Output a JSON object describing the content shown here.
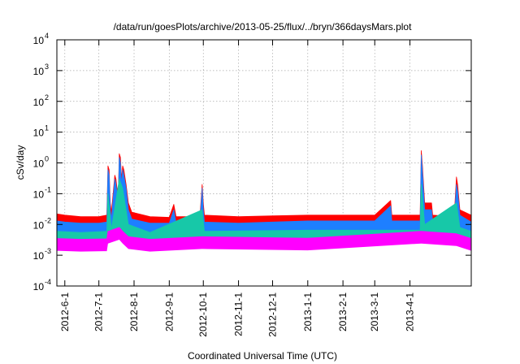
{
  "chart_data": {
    "type": "area",
    "title": "/data/run/goesPlots/archive/2013-05-25/flux/../bryn/366daysMars.plot",
    "xlabel": "Coordinated Universal Time (UTC)",
    "ylabel": "cSv/day",
    "y_scale": "log",
    "ylim": [
      0.0001,
      10000
    ],
    "xlim": [
      "2012-05-25",
      "2013-05-25"
    ],
    "y_ticks": [
      {
        "value": 0.0001,
        "base": "10",
        "exp": "-4"
      },
      {
        "value": 0.001,
        "base": "10",
        "exp": "-3"
      },
      {
        "value": 0.01,
        "base": "10",
        "exp": "-2"
      },
      {
        "value": 0.1,
        "base": "10",
        "exp": "-1"
      },
      {
        "value": 1,
        "base": "10",
        "exp": "0"
      },
      {
        "value": 10,
        "base": "10",
        "exp": "1"
      },
      {
        "value": 100,
        "base": "10",
        "exp": "2"
      },
      {
        "value": 1000,
        "base": "10",
        "exp": "3"
      },
      {
        "value": 10000,
        "base": "10",
        "exp": "4"
      }
    ],
    "x_ticks": [
      {
        "date": "2012-06-01",
        "label": "2012-6-1"
      },
      {
        "date": "2012-07-01",
        "label": "2012-7-1"
      },
      {
        "date": "2012-08-01",
        "label": "2012-8-1"
      },
      {
        "date": "2012-09-01",
        "label": "2012-9-1"
      },
      {
        "date": "2012-10-01",
        "label": "2012-10-1"
      },
      {
        "date": "2012-11-01",
        "label": "2012-11-1"
      },
      {
        "date": "2012-12-01",
        "label": "2012-12-1"
      },
      {
        "date": "2013-01-01",
        "label": "2013-1-1"
      },
      {
        "date": "2013-02-01",
        "label": "2013-2-1"
      },
      {
        "date": "2013-03-01",
        "label": "2013-3-1"
      },
      {
        "date": "2013-04-01",
        "label": "2013-4-1"
      }
    ],
    "grid": true,
    "series": [
      {
        "color": "#ff0000",
        "values": [
          [
            "2012-05-25",
            0.022
          ],
          [
            "2012-06-01",
            0.02
          ],
          [
            "2012-06-15",
            0.018
          ],
          [
            "2012-07-01",
            0.018
          ],
          [
            "2012-07-08",
            0.02
          ],
          [
            "2012-07-09",
            0.8
          ],
          [
            "2012-07-10",
            0.6
          ],
          [
            "2012-07-11",
            0.05
          ],
          [
            "2012-07-12",
            0.025
          ],
          [
            "2012-07-15",
            0.4
          ],
          [
            "2012-07-16",
            0.3
          ],
          [
            "2012-07-18",
            0.07
          ],
          [
            "2012-07-19",
            2.0
          ],
          [
            "2012-07-20",
            1.5
          ],
          [
            "2012-07-21",
            0.3
          ],
          [
            "2012-07-22",
            0.8
          ],
          [
            "2012-07-23",
            0.6
          ],
          [
            "2012-07-25",
            0.2
          ],
          [
            "2012-07-27",
            0.05
          ],
          [
            "2012-07-30",
            0.025
          ],
          [
            "2012-08-15",
            0.018
          ],
          [
            "2012-09-01",
            0.017
          ],
          [
            "2012-09-05",
            0.045
          ],
          [
            "2012-09-07",
            0.018
          ],
          [
            "2012-09-28",
            0.018
          ],
          [
            "2012-09-30",
            0.2
          ],
          [
            "2012-10-01",
            0.05
          ],
          [
            "2012-10-02",
            0.02
          ],
          [
            "2012-11-01",
            0.018
          ],
          [
            "2012-12-01",
            0.019
          ],
          [
            "2013-01-01",
            0.02
          ],
          [
            "2013-02-01",
            0.02
          ],
          [
            "2013-03-01",
            0.02
          ],
          [
            "2013-03-15",
            0.06
          ],
          [
            "2013-03-16",
            0.02
          ],
          [
            "2013-04-10",
            0.02
          ],
          [
            "2013-04-11",
            2.5
          ],
          [
            "2013-04-12",
            0.8
          ],
          [
            "2013-04-14",
            0.05
          ],
          [
            "2013-04-20",
            0.05
          ],
          [
            "2013-04-21",
            0.02
          ],
          [
            "2013-05-10",
            0.018
          ],
          [
            "2013-05-12",
            0.35
          ],
          [
            "2013-05-13",
            0.2
          ],
          [
            "2013-05-15",
            0.03
          ],
          [
            "2013-05-25",
            0.02
          ]
        ]
      },
      {
        "color": "#1e7fff",
        "values": [
          [
            "2012-05-25",
            0.013
          ],
          [
            "2012-06-01",
            0.012
          ],
          [
            "2012-06-15",
            0.011
          ],
          [
            "2012-07-01",
            0.011
          ],
          [
            "2012-07-08",
            0.012
          ],
          [
            "2012-07-09",
            0.6
          ],
          [
            "2012-07-10",
            0.4
          ],
          [
            "2012-07-11",
            0.03
          ],
          [
            "2012-07-12",
            0.015
          ],
          [
            "2012-07-15",
            0.3
          ],
          [
            "2012-07-16",
            0.2
          ],
          [
            "2012-07-18",
            0.05
          ],
          [
            "2012-07-19",
            1.5
          ],
          [
            "2012-07-20",
            1.0
          ],
          [
            "2012-07-21",
            0.2
          ],
          [
            "2012-07-22",
            0.6
          ],
          [
            "2012-07-23",
            0.4
          ],
          [
            "2012-07-25",
            0.15
          ],
          [
            "2012-07-27",
            0.03
          ],
          [
            "2012-07-30",
            0.015
          ],
          [
            "2012-08-15",
            0.011
          ],
          [
            "2012-09-01",
            0.011
          ],
          [
            "2012-09-05",
            0.03
          ],
          [
            "2012-09-07",
            0.011
          ],
          [
            "2012-09-28",
            0.011
          ],
          [
            "2012-09-30",
            0.15
          ],
          [
            "2012-10-01",
            0.03
          ],
          [
            "2012-10-02",
            0.012
          ],
          [
            "2012-11-01",
            0.011
          ],
          [
            "2012-12-01",
            0.012
          ],
          [
            "2013-01-01",
            0.013
          ],
          [
            "2013-02-01",
            0.013
          ],
          [
            "2013-03-01",
            0.013
          ],
          [
            "2013-03-15",
            0.04
          ],
          [
            "2013-03-16",
            0.013
          ],
          [
            "2013-04-10",
            0.013
          ],
          [
            "2013-04-11",
            1.8
          ],
          [
            "2013-04-12",
            0.5
          ],
          [
            "2013-04-14",
            0.03
          ],
          [
            "2013-04-20",
            0.03
          ],
          [
            "2013-04-21",
            0.013
          ],
          [
            "2013-05-10",
            0.011
          ],
          [
            "2013-05-12",
            0.2
          ],
          [
            "2013-05-13",
            0.12
          ],
          [
            "2013-05-15",
            0.02
          ],
          [
            "2013-05-25",
            0.012
          ]
        ]
      },
      {
        "color": "#17c8a8",
        "values": [
          [
            "2012-05-25",
            0.006
          ],
          [
            "2012-06-15",
            0.0055
          ],
          [
            "2012-07-08",
            0.006
          ],
          [
            "2012-07-09",
            0.1
          ],
          [
            "2012-07-12",
            0.007
          ],
          [
            "2012-07-19",
            0.3
          ],
          [
            "2012-07-22",
            0.15
          ],
          [
            "2012-07-27",
            0.01
          ],
          [
            "2012-08-15",
            0.0055
          ],
          [
            "2012-09-30",
            0.03
          ],
          [
            "2012-10-02",
            0.006
          ],
          [
            "2013-01-01",
            0.0065
          ],
          [
            "2013-04-10",
            0.0065
          ],
          [
            "2013-04-11",
            0.2
          ],
          [
            "2013-04-14",
            0.01
          ],
          [
            "2013-05-12",
            0.05
          ],
          [
            "2013-05-15",
            0.008
          ],
          [
            "2013-05-25",
            0.006
          ]
        ]
      },
      {
        "color": "#ff00ff",
        "values": [
          [
            "2012-05-25",
            0.0035
          ],
          [
            "2012-06-15",
            0.0033
          ],
          [
            "2012-07-08",
            0.0034
          ],
          [
            "2012-07-09",
            0.006
          ],
          [
            "2012-07-19",
            0.008
          ],
          [
            "2012-07-22",
            0.006
          ],
          [
            "2012-07-27",
            0.004
          ],
          [
            "2012-08-15",
            0.0033
          ],
          [
            "2012-09-30",
            0.004
          ],
          [
            "2013-01-01",
            0.0036
          ],
          [
            "2013-04-11",
            0.006
          ],
          [
            "2013-05-12",
            0.005
          ],
          [
            "2013-05-25",
            0.0035
          ]
        ]
      }
    ]
  }
}
